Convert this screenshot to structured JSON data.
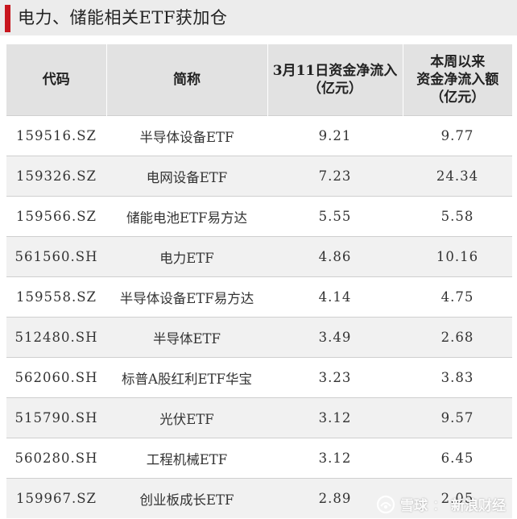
{
  "title": "电力、储能相关ETF获加仓",
  "table": {
    "headers": {
      "code": "代码",
      "name": "简称",
      "flow_day_line1": "3月11日资金净流入",
      "flow_day_line2": "（亿元）",
      "flow_week_line1": "本周以来",
      "flow_week_line2": "资金净流入额",
      "flow_week_line3": "（亿元）"
    },
    "rows": [
      {
        "code": "159516.SZ",
        "name": "半导体设备ETF",
        "day": "9.21",
        "week": "9.77"
      },
      {
        "code": "159326.SZ",
        "name": "电网设备ETF",
        "day": "7.23",
        "week": "24.34"
      },
      {
        "code": "159566.SZ",
        "name": "储能电池ETF易方达",
        "day": "5.55",
        "week": "5.58"
      },
      {
        "code": "561560.SH",
        "name": "电力ETF",
        "day": "4.86",
        "week": "10.16"
      },
      {
        "code": "159558.SZ",
        "name": "半导体设备ETF易方达",
        "day": "4.14",
        "week": "4.75"
      },
      {
        "code": "512480.SH",
        "name": "半导体ETF",
        "day": "3.49",
        "week": "2.68"
      },
      {
        "code": "562060.SH",
        "name": "标普A股红利ETF华宝",
        "day": "3.23",
        "week": "3.83"
      },
      {
        "code": "515790.SH",
        "name": "光伏ETF",
        "day": "3.12",
        "week": "9.57"
      },
      {
        "code": "560280.SH",
        "name": "工程机械ETF",
        "day": "3.12",
        "week": "6.45"
      },
      {
        "code": "159967.SZ",
        "name": "创业板成长ETF",
        "day": "2.89",
        "week": "2.05"
      }
    ]
  },
  "watermark": {
    "brand1": "雪球",
    "separator": "：",
    "brand2": "新浪财经",
    "icon": "snowball-logo-icon"
  },
  "colors": {
    "accent": "#c8161e",
    "header_bg": "#e2e2e2",
    "title_bg": "#ececec",
    "stripe": "#f1f1f1"
  }
}
